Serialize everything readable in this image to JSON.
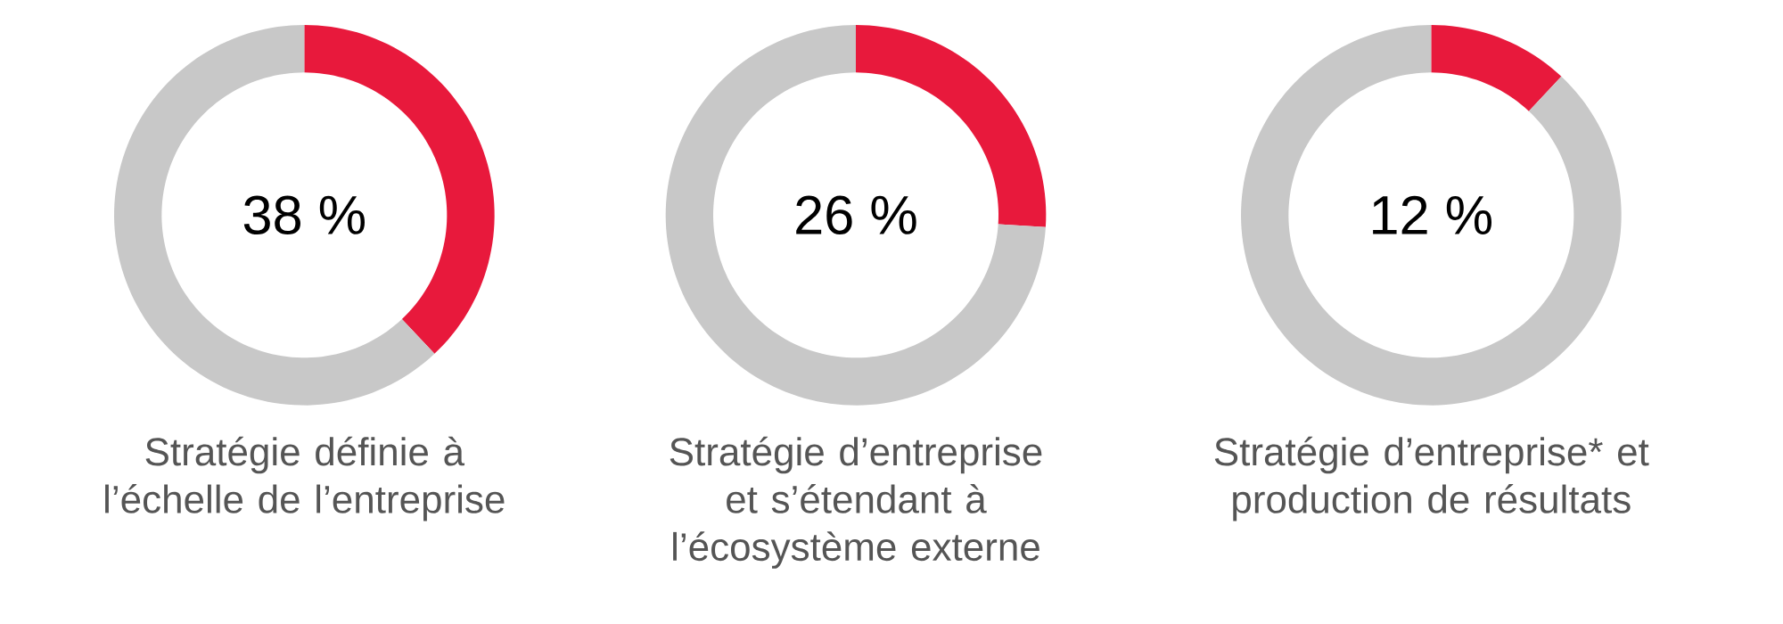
{
  "chart_data": [
    {
      "type": "donut",
      "title": "Stratégie définie à l’échelle de l’entreprise",
      "categories": [
        null,
        null
      ],
      "values": [
        38,
        62
      ],
      "colors": [
        "#e8193c",
        "#c8c8c8"
      ],
      "annotations": [
        "38 %"
      ]
    },
    {
      "type": "donut",
      "title": "Stratégie d’entreprise et s’étendant à l’écosystème externe",
      "categories": [
        null,
        null
      ],
      "values": [
        26,
        74
      ],
      "colors": [
        "#e8193c",
        "#c8c8c8"
      ],
      "annotations": [
        "26 %"
      ]
    },
    {
      "type": "donut",
      "title": "Stratégie d’entreprise* et production de résultats",
      "categories": [
        null,
        null
      ],
      "values": [
        12,
        88
      ],
      "colors": [
        "#e8193c",
        "#c8c8c8"
      ],
      "annotations": [
        "12 %"
      ]
    }
  ]
}
